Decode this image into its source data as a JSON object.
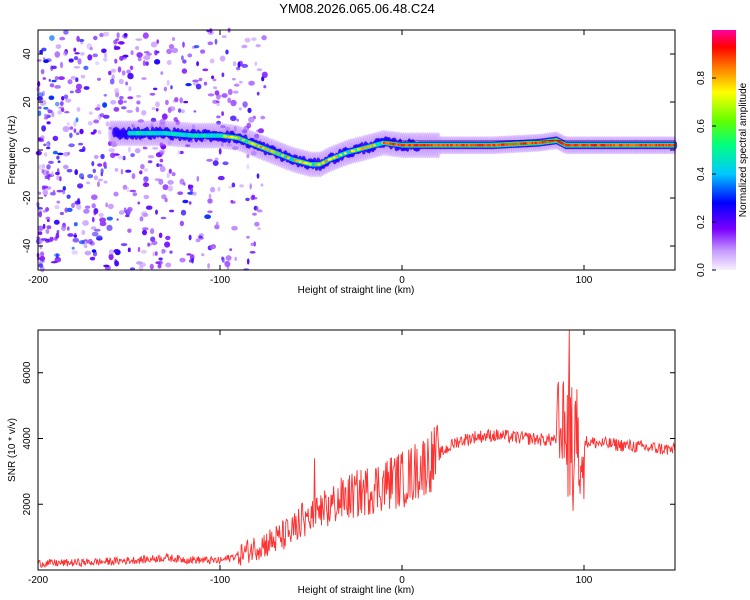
{
  "title": "YM08.2026.065.06.48.C24",
  "chart_data": [
    {
      "type": "heatmap",
      "name": "spectrogram",
      "xlabel": "Height of straight line (km)",
      "ylabel": "Frequency (Hz)",
      "xlim": [
        -200,
        150
      ],
      "ylim": [
        -50,
        50
      ],
      "xticks": [
        -200,
        -100,
        0,
        100
      ],
      "yticks": [
        -40,
        -20,
        0,
        20,
        40
      ],
      "colorbar": {
        "label": "Normalized spectral amplitude",
        "range": [
          0,
          1
        ],
        "ticks": [
          0,
          0.2,
          0.4,
          0.6,
          0.8
        ]
      },
      "ridge": {
        "x": [
          -155,
          -145,
          -130,
          -115,
          -100,
          -90,
          -80,
          -70,
          -60,
          -50,
          -45,
          -40,
          -30,
          -20,
          -15,
          -10,
          0,
          10,
          30,
          50,
          75,
          85,
          90,
          100,
          120,
          150
        ],
        "freq": [
          7,
          7,
          7,
          6,
          6,
          5,
          2,
          -1,
          -4,
          -6,
          -6,
          -4,
          -1,
          1,
          2,
          3,
          2,
          2,
          2,
          2,
          3,
          4,
          2,
          2,
          2,
          2
        ]
      }
    },
    {
      "type": "line",
      "name": "snr",
      "xlabel": "Height of straight line (km)",
      "ylabel": "SNR (10 * v/v)",
      "xlim": [
        -200,
        150
      ],
      "ylim": [
        0,
        7300
      ],
      "xticks": [
        -200,
        -100,
        0,
        100
      ],
      "yticks": [
        2000,
        4000,
        6000
      ],
      "color": "#ff3030",
      "x": [
        -200,
        -180,
        -160,
        -140,
        -130,
        -120,
        -110,
        -100,
        -90,
        -80,
        -70,
        -60,
        -55,
        -50,
        -45,
        -40,
        -35,
        -30,
        -25,
        -20,
        -15,
        -10,
        -5,
        0,
        5,
        10,
        20,
        30,
        40,
        50,
        60,
        70,
        80,
        85,
        88,
        90,
        92,
        95,
        100,
        110,
        120,
        130,
        140,
        150
      ],
      "y": [
        200,
        220,
        260,
        320,
        380,
        320,
        300,
        280,
        450,
        700,
        900,
        1200,
        1500,
        1600,
        1700,
        1900,
        2100,
        2200,
        2300,
        2400,
        2500,
        2600,
        2700,
        2750,
        2900,
        3100,
        3500,
        3900,
        4050,
        4100,
        4050,
        4000,
        3950,
        4000,
        4100,
        4200,
        3800,
        4000,
        3900,
        3850,
        3800,
        3750,
        3700,
        3650
      ],
      "spikes": [
        {
          "x": -48,
          "y": 3400
        },
        {
          "x": -5,
          "y": 3000
        },
        {
          "x": 92,
          "y": 7300
        },
        {
          "x": 96,
          "y": 5500
        },
        {
          "x": 94,
          "y": 1800
        }
      ]
    }
  ]
}
